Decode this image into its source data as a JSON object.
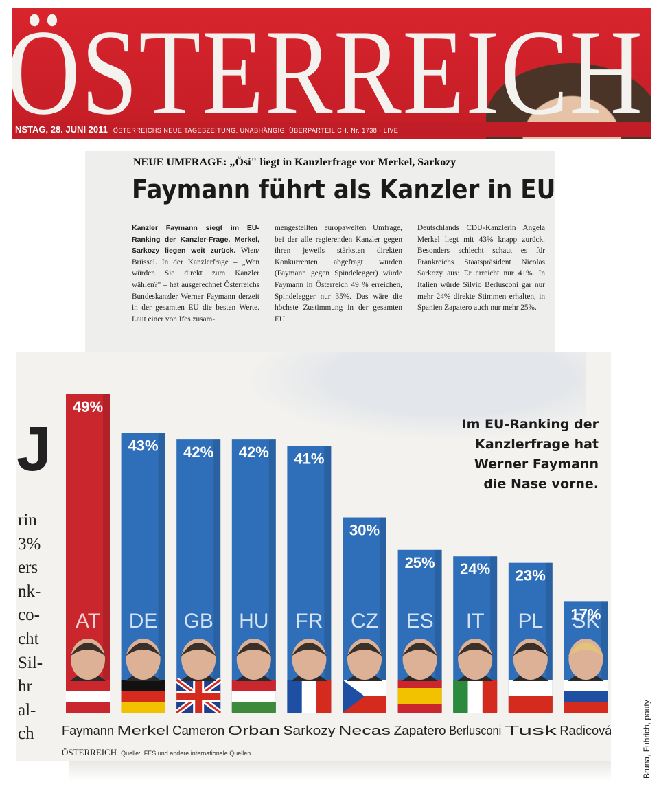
{
  "masthead": {
    "title": "ÖSTERREICH",
    "date_line": "NSTAG, 28. JUNI 2011",
    "tagline": "ÖSTERREICHS NEUE TAGESZEITUNG. UNABHÄNGIG. ÜBERPARTEILICH. Nr. 1738 · LIVE"
  },
  "article": {
    "kicker": "NEUE UMFRAGE: „Ösi\" liegt in Kanzlerfrage vor Merkel, Sarkozy",
    "headline": "Faymann führt als Kanzler in EU",
    "col1_lead": "Kanzler Faymann siegt im EU-Ranking der Kanzler-Frage. Merkel, Sarkozy liegen weit zurück.",
    "col1_body": "Wien/ Brüssel. In der Kanzlerfrage – „Wen würden Sie direkt zum Kanzler wählen?\" – hat ausgerechnet Österreichs Bundeskanzler Werner Faymann derzeit in der gesamten EU die besten Werte. Laut einer von Ifes zusam-",
    "col2_body": "mengestellten europaweiten Umfrage, bei der alle regierenden Kanzler gegen ihren jeweils stärksten direkten Konkurrenten abgefragt wurden (Faymann gegen Spindelegger) würde Faymann in Österreich 49 % erreichen, Spindelegger nur 35%. Das wäre die höchste Zustimmung in der gesamten EU.",
    "col3_body": "Deutschlands CDU-Kanzlerin Angela Merkel liegt mit 43% knapp zurück. Besonders schlecht schaut es für Frankreichs Staatspräsident Nicolas Sarkozy aus: Er erreicht nur 41%. In Italien würde Silvio Berlusconi gar nur mehr 24% direkte Stimmen erhalten, in Spanien Zapatero auch nur mehr 25%."
  },
  "graphic": {
    "big_letter": "J",
    "edge_fragments": [
      "rin",
      "3%",
      "ers",
      "nk-",
      "co-",
      "cht",
      "Sil-",
      "hr",
      "al-",
      "ch"
    ],
    "caption": [
      "Im EU-Ranking der",
      "Kanzlerfrage hat",
      "Werner Faymann",
      "die Nase vorne."
    ],
    "source_brand": "ÖSTERREICH",
    "source_text": "Quelle: IFES und andere internationale Quellen",
    "credit": "Bruna, Fuhrich, pauty"
  },
  "chart_data": {
    "type": "bar",
    "categories": [
      "Faymann",
      "Merkel",
      "Cameron",
      "Orban",
      "Sarkozy",
      "Necas",
      "Zapatero",
      "Berlusconi",
      "Tusk",
      "Radicová"
    ],
    "country_codes": [
      "AT",
      "DE",
      "GB",
      "HU",
      "FR",
      "CZ",
      "ES",
      "IT",
      "PL",
      "SK"
    ],
    "values": [
      49,
      43,
      42,
      42,
      41,
      30,
      25,
      24,
      23,
      17
    ],
    "value_labels": [
      "49%",
      "43%",
      "42%",
      "42%",
      "41%",
      "30%",
      "25%",
      "24%",
      "23%",
      "17%"
    ],
    "unit": "%",
    "bar_colors": [
      "#c9272d",
      "#2f6fb9",
      "#2f6fb9",
      "#2f6fb9",
      "#2f6fb9",
      "#2f6fb9",
      "#2f6fb9",
      "#2f6fb9",
      "#2f6fb9",
      "#2f6fb9"
    ],
    "ylim": [
      0,
      49
    ],
    "grid": false,
    "legend": "none"
  }
}
